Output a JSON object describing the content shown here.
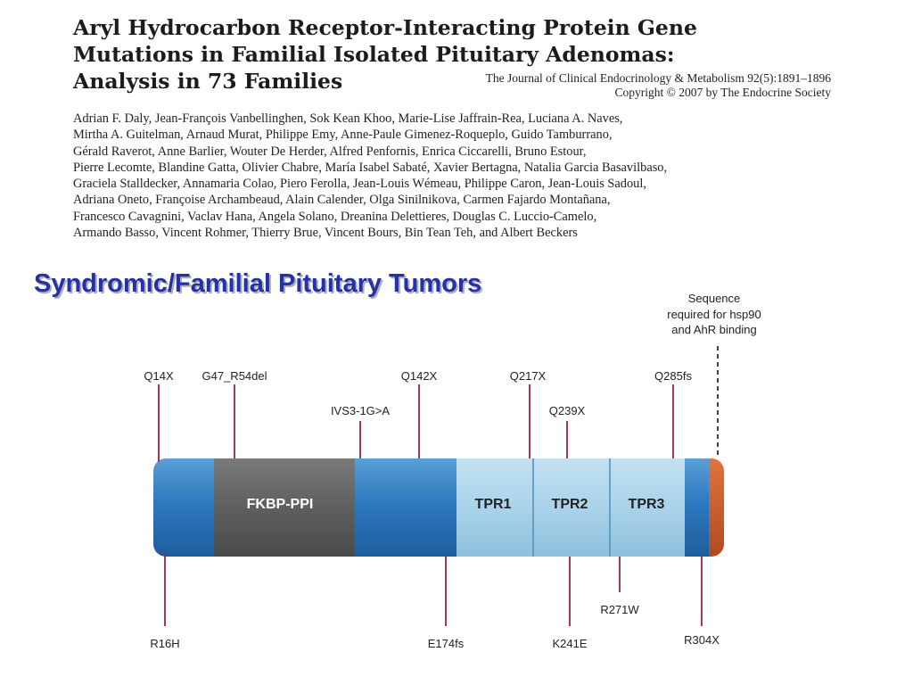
{
  "title_lines": [
    "Aryl Hydrocarbon Receptor-Interacting Protein Gene",
    "Mutations in Familial Isolated Pituitary Adenomas:",
    "Analysis in 73 Families"
  ],
  "journal": {
    "citation": "The Journal of Clinical Endocrinology & Metabolism 92(5):1891–1896",
    "copyright": "Copyright © 2007 by The Endocrine Society"
  },
  "authors_lines": [
    "Adrian F. Daly, Jean-François Vanbellinghen, Sok Kean Khoo, Marie-Lise Jaffrain-Rea, Luciana A. Naves,",
    "Mirtha A. Guitelman, Arnaud Murat, Philippe Emy, Anne-Paule Gimenez-Roqueplo, Guido Tamburrano,",
    "Gérald Raverot, Anne Barlier, Wouter De Herder, Alfred Penfornis, Enrica Ciccarelli, Bruno Estour,",
    "Pierre Lecomte, Blandine Gatta, Olivier Chabre, María Isabel Sabaté, Xavier Bertagna, Natalia Garcia Basavilbaso,",
    "Graciela Stalldecker, Annamaria Colao, Piero Ferolla, Jean-Louis Wémeau, Philippe Caron, Jean-Louis Sadoul,",
    "Adriana Oneto, Françoise Archambeaud, Alain Calender, Olga Sinilnikova, Carmen Fajardo Montañana,",
    "Francesco Cavagnini, Vaclav Hana, Angela Solano, Dreanina Delettieres, Douglas C. Luccio-Camelo,",
    "Armando Basso, Vincent Rohmer, Thierry Brue, Vincent Bours, Bin Tean Teh, and Albert Beckers"
  ],
  "section_title": "Syndromic/Familial Pituitary Tumors",
  "diagram": {
    "annotation_lines": [
      "Sequence",
      "required for hsp90",
      "and AhR binding"
    ],
    "domains": {
      "fkbp": "FKBP-PPI",
      "tpr1": "TPR1",
      "tpr2": "TPR2",
      "tpr3": "TPR3"
    },
    "mutations_above": [
      "Q14X",
      "G47_R54del",
      "IVS3-1G>A",
      "Q142X",
      "Q217X",
      "Q239X",
      "Q285fs"
    ],
    "mutations_below": [
      "R16H",
      "E174fs",
      "K241E",
      "R271W",
      "R304X"
    ],
    "colors": {
      "blue": "#2d79c0",
      "grey_domain": "#5f5f60",
      "tpr": "#a9d3ea",
      "c_terminal": "#c9582b",
      "tick": "#a0204e",
      "title": "#2431a8"
    }
  }
}
